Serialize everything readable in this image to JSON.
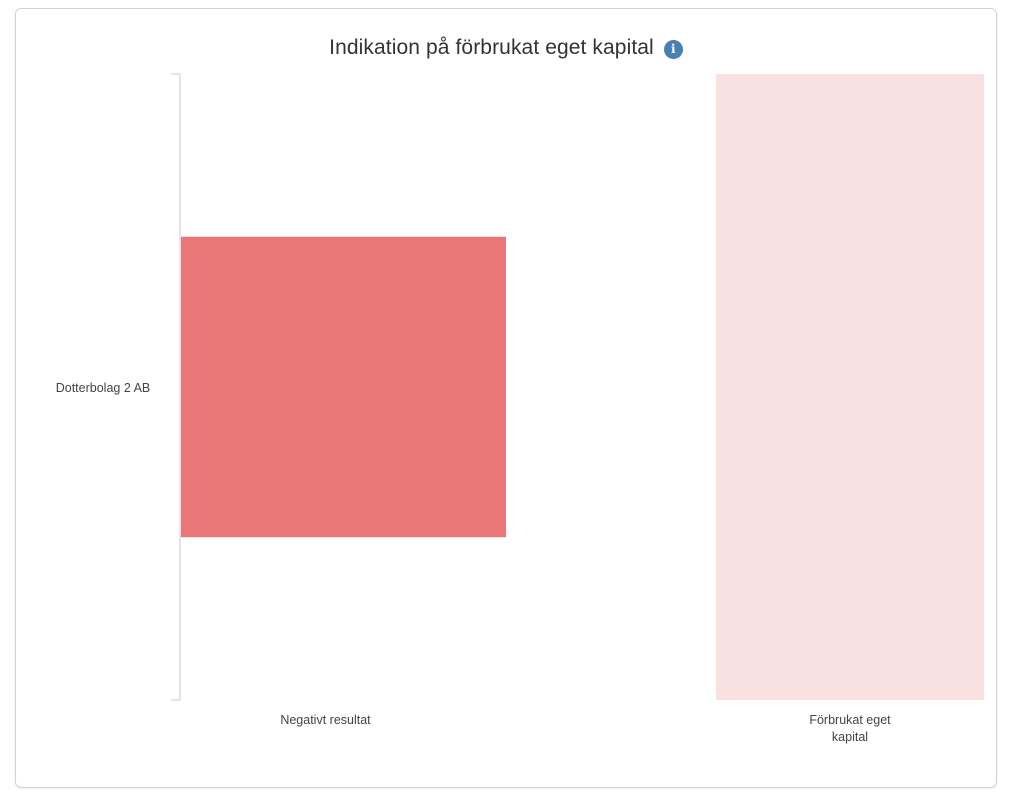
{
  "chart_data": {
    "type": "bar",
    "title": "Indikation på förbrukat eget kapital",
    "y_categories": [
      "Dotterbolag 2 AB"
    ],
    "x_categories": [
      "Negativt resultat",
      "Förbrukat eget kapital"
    ],
    "series": [
      {
        "category": "Negativt resultat",
        "value": 0.48,
        "color": "#e97777"
      },
      {
        "category": "Förbrukat eget kapital",
        "value": 1.0,
        "color": "#f9e1e1"
      }
    ],
    "value_range": [
      0,
      1
    ],
    "grid": false,
    "legend": "none"
  },
  "info_icon": {
    "name": "info-icon",
    "symbol": "i",
    "color": "#4a7fb3"
  },
  "colors": {
    "axis": "#d9dee5",
    "text": "#333333",
    "card_border": "#cfd3d8"
  }
}
